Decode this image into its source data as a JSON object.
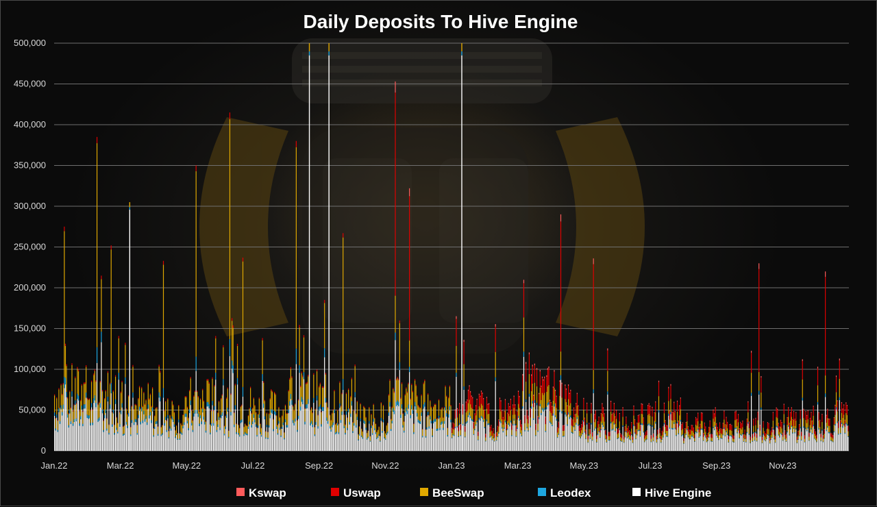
{
  "chart_data": {
    "type": "bar",
    "stacked": true,
    "title": "Daily Deposits To Hive Engine",
    "xlabel": "",
    "ylabel": "",
    "ylim": [
      0,
      500000
    ],
    "y_ticks": [
      "0",
      "50,000",
      "100,000",
      "150,000",
      "200,000",
      "250,000",
      "300,000",
      "350,000",
      "400,000",
      "450,000",
      "500,000"
    ],
    "x_ticks": [
      "Jan.22",
      "Mar.22",
      "May.22",
      "Jul.22",
      "Sep.22",
      "Nov.22",
      "Jan.23",
      "Mar.23",
      "May.23",
      "Jul.23",
      "Sep.23",
      "Nov.23"
    ],
    "x_period": {
      "start": "Jan.22",
      "end": "Dec.23",
      "granularity": "daily"
    },
    "grid": true,
    "legend_position": "bottom",
    "series": [
      {
        "name": "Kswap",
        "color": "#ff5b5b"
      },
      {
        "name": "Uswap",
        "color": "#e00000"
      },
      {
        "name": "BeeSwap",
        "color": "#e0a800"
      },
      {
        "name": "Leodex",
        "color": "#1ea7e0"
      },
      {
        "name": "Hive Engine",
        "color": "#ffffff"
      }
    ],
    "monthly_typical_total": [
      {
        "month": "Jan.22",
        "total": 70000
      },
      {
        "month": "Feb.22",
        "total": 68000
      },
      {
        "month": "Mar.22",
        "total": 55000
      },
      {
        "month": "Apr.22",
        "total": 45000
      },
      {
        "month": "May.22",
        "total": 60000
      },
      {
        "month": "Jun.22",
        "total": 55000
      },
      {
        "month": "Jul.22",
        "total": 50000
      },
      {
        "month": "Aug.22",
        "total": 65000
      },
      {
        "month": "Sep.22",
        "total": 62000
      },
      {
        "month": "Oct.22",
        "total": 40000
      },
      {
        "month": "Nov.22",
        "total": 60000
      },
      {
        "month": "Dec.22",
        "total": 55000
      },
      {
        "month": "Jan.23",
        "total": 50000
      },
      {
        "month": "Feb.23",
        "total": 45000
      },
      {
        "month": "Mar.23",
        "total": 70000
      },
      {
        "month": "Apr.23",
        "total": 55000
      },
      {
        "month": "May.23",
        "total": 40000
      },
      {
        "month": "Jun.23",
        "total": 38000
      },
      {
        "month": "Jul.23",
        "total": 40000
      },
      {
        "month": "Aug.23",
        "total": 35000
      },
      {
        "month": "Sep.23",
        "total": 32000
      },
      {
        "month": "Oct.23",
        "total": 35000
      },
      {
        "month": "Nov.23",
        "total": 38000
      },
      {
        "month": "Dec.23",
        "total": 40000
      }
    ],
    "notable_peaks": [
      {
        "date": "Jan.22",
        "total": 275000,
        "dominant": "BeeSwap"
      },
      {
        "date": "Feb.22",
        "total": 385000,
        "dominant": "BeeSwap"
      },
      {
        "date": "Feb.22",
        "total": 252000,
        "dominant": "BeeSwap"
      },
      {
        "date": "Mar.22",
        "total": 305000,
        "dominant": "Hive Engine"
      },
      {
        "date": "Apr.22",
        "total": 233000,
        "dominant": "BeeSwap"
      },
      {
        "date": "May.22",
        "total": 350000,
        "dominant": "BeeSwap"
      },
      {
        "date": "Jun.22",
        "total": 415000,
        "dominant": "BeeSwap"
      },
      {
        "date": "Jun.22",
        "total": 237000,
        "dominant": "BeeSwap"
      },
      {
        "date": "Aug.22",
        "total": 380000,
        "dominant": "BeeSwap"
      },
      {
        "date": "Aug.22",
        "total": 500000,
        "dominant": "Hive Engine"
      },
      {
        "date": "Sep.22",
        "total": 500000,
        "dominant": "Hive Engine"
      },
      {
        "date": "Sep.22",
        "total": 267000,
        "dominant": "BeeSwap"
      },
      {
        "date": "Nov.22",
        "total": 453000,
        "dominant": "Uswap"
      },
      {
        "date": "Nov.22",
        "total": 322000,
        "dominant": "Uswap"
      },
      {
        "date": "Jan.23",
        "total": 500000,
        "dominant": "Hive Engine"
      },
      {
        "date": "Apr.23",
        "total": 290000,
        "dominant": "Uswap"
      },
      {
        "date": "May.23",
        "total": 236000,
        "dominant": "Uswap"
      },
      {
        "date": "Oct.23",
        "total": 230000,
        "dominant": "Uswap"
      },
      {
        "date": "Dec.23",
        "total": 220000,
        "dominant": "Uswap"
      }
    ]
  }
}
